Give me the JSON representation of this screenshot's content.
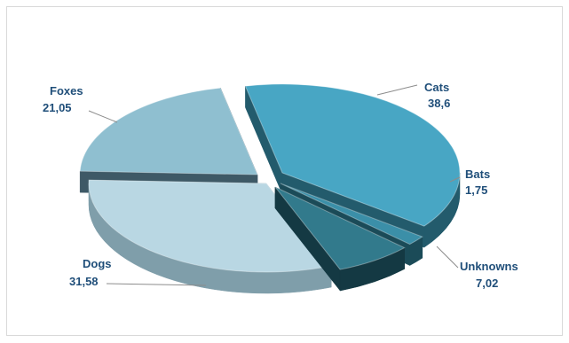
{
  "chart_data": {
    "type": "pie",
    "style": "exploded-3d",
    "categories": [
      "Cats",
      "Bats",
      "Unknowns",
      "Dogs",
      "Foxes"
    ],
    "values": [
      38.6,
      1.75,
      7.02,
      31.58,
      21.05
    ],
    "value_labels": [
      "38,6",
      "1,75",
      "7,02",
      "31,58",
      "21,05"
    ],
    "title": "",
    "legend": "none",
    "colors": {
      "Cats": {
        "top": "#48a6c4",
        "side": "#235b6c"
      },
      "Bats": {
        "top": "#3b8fa8",
        "side": "#1b4b58"
      },
      "Unknowns": {
        "top": "#327a8c",
        "side": "#143943"
      },
      "Dogs": {
        "top": "#b9d7e3",
        "side": "#7f9eaa"
      },
      "Foxes": {
        "top": "#8fbfd0",
        "side": "#3e5966"
      }
    },
    "label_color": "#1f4e79"
  }
}
